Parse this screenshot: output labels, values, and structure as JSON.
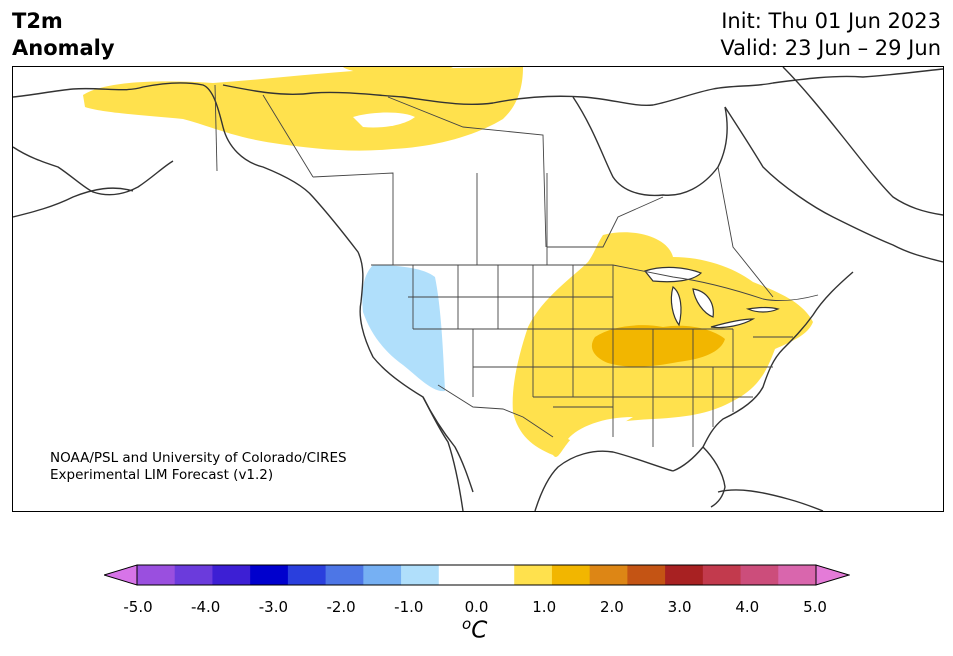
{
  "title": {
    "line1": "T2m",
    "line2": "Anomaly"
  },
  "info": {
    "init": "Init: Thu 01 Jun 2023",
    "valid": "Valid: 23 Jun – 29 Jun"
  },
  "credit": {
    "line1": "NOAA/PSL and University of Colorado/CIRES",
    "line2": "Experimental LIM Forecast (v1.2)"
  },
  "legend": {
    "ticks": [
      "-5.0",
      "-4.0",
      "-3.0",
      "-2.0",
      "-1.0",
      "0.0",
      "1.0",
      "2.0",
      "3.0",
      "4.0",
      "5.0"
    ],
    "unit_sup": "o",
    "unit": "C",
    "colors": [
      "#d774e8",
      "#9a4fdf",
      "#6b3bdc",
      "#3d1fd4",
      "#0000cd",
      "#2a3fdd",
      "#4d76e6",
      "#76b0f3",
      "#b0dffb",
      "#ffffff",
      "#ffffff",
      "#ffe14d",
      "#f2b600",
      "#dd8615",
      "#c45414",
      "#a82122",
      "#c23a4d",
      "#cc4d7b",
      "#d966ad",
      "#e47bd8"
    ]
  },
  "anomaly_colors": {
    "light_blue": "#b0dffb",
    "yellow": "#ffe14d",
    "orange": "#f2b600"
  }
}
